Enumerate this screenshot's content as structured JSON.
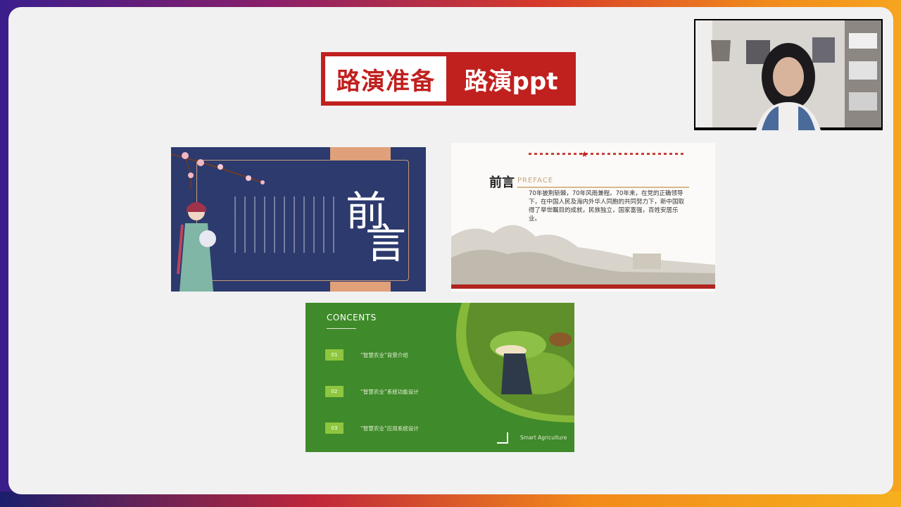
{
  "banner": {
    "left_text": "路演准备",
    "right_text": "路演ppt",
    "color": "#c0201e"
  },
  "thumb1": {
    "char_top": "前",
    "char_bottom": "言"
  },
  "thumb2": {
    "title_cn": "前言",
    "title_en": "PREFACE",
    "paragraph": "70年披荆斩棘，70年风雨兼程。70年来，在党的正确领导下，在中国人民及海内外华人同胞的共同努力下，新中国取得了举世瞩目的成就，民族独立，国家富强，百姓安居乐业。"
  },
  "thumb3": {
    "heading": "CONCENTS",
    "items": [
      {
        "num": "01",
        "label": "“智慧农业”背景介绍"
      },
      {
        "num": "02",
        "label": "“智慧农业”系统功能设计"
      },
      {
        "num": "03",
        "label": "“智慧农业”应用系统设计"
      }
    ],
    "footer": "Smart Agriculture"
  },
  "icons": {
    "star": "star-icon"
  }
}
